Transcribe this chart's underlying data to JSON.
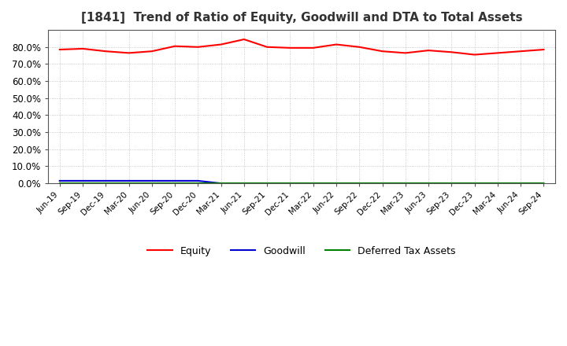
{
  "title": "[1841]  Trend of Ratio of Equity, Goodwill and DTA to Total Assets",
  "labels": [
    "Jun-19",
    "Sep-19",
    "Dec-19",
    "Mar-20",
    "Jun-20",
    "Sep-20",
    "Dec-20",
    "Mar-21",
    "Jun-21",
    "Sep-21",
    "Dec-21",
    "Mar-22",
    "Jun-22",
    "Sep-22",
    "Dec-22",
    "Mar-23",
    "Jun-23",
    "Sep-23",
    "Dec-23",
    "Mar-24",
    "Jun-24",
    "Sep-24"
  ],
  "equity": [
    78.5,
    79.0,
    77.5,
    76.5,
    77.5,
    80.5,
    80.0,
    81.5,
    84.5,
    80.0,
    79.5,
    79.5,
    81.5,
    80.0,
    77.5,
    76.5,
    78.0,
    77.0,
    75.5,
    76.5,
    77.5,
    78.5
  ],
  "goodwill": [
    1.5,
    1.5,
    1.5,
    1.5,
    1.5,
    1.5,
    1.5,
    0.0,
    0.0,
    0.0,
    0.0,
    0.0,
    0.0,
    0.0,
    0.0,
    0.0,
    0.0,
    0.0,
    0.0,
    0.0,
    0.0,
    0.0
  ],
  "dta": [
    0.3,
    0.3,
    0.3,
    0.3,
    0.3,
    0.3,
    0.3,
    0.3,
    0.3,
    0.3,
    0.3,
    0.3,
    0.3,
    0.3,
    0.3,
    0.3,
    0.3,
    0.3,
    0.3,
    0.3,
    0.3,
    0.3
  ],
  "equity_color": "#ff0000",
  "goodwill_color": "#0000cc",
  "dta_color": "#008000",
  "ylim": [
    0,
    90
  ],
  "yticks": [
    0,
    10,
    20,
    30,
    40,
    50,
    60,
    70,
    80
  ],
  "background_color": "#ffffff",
  "plot_bg_color": "#ffffff",
  "grid_color": "#aaaaaa",
  "title_fontsize": 11,
  "legend_labels": [
    "Equity",
    "Goodwill",
    "Deferred Tax Assets"
  ]
}
